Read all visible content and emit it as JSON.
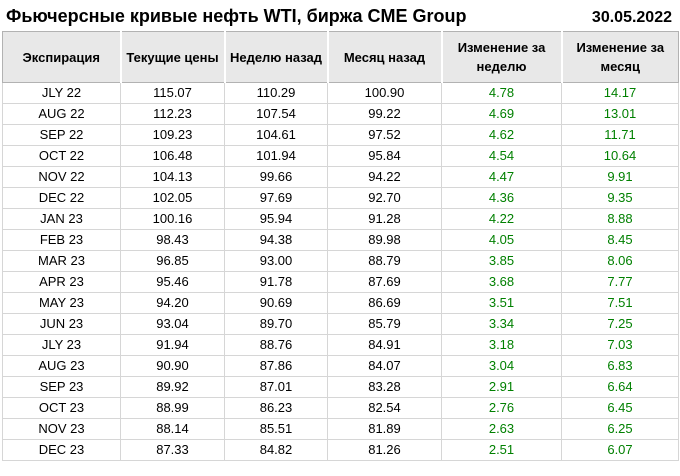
{
  "header": {
    "title": "Фьючерсные кривые нефть WTI, биржа CME Group",
    "date": "30.05.2022"
  },
  "colors": {
    "positive_change_text": "#008000",
    "header_background": "#e8e8e8",
    "header_border": "#b2b2b2",
    "grid_border": "#d6d6d6",
    "body_text": "#000000"
  },
  "table": {
    "columns": [
      "Экспирация",
      "Текущие цены",
      "Неделю назад",
      "Месяц назад",
      "Изменение за неделю",
      "Изменение за месяц"
    ],
    "rows": [
      [
        "JLY 22",
        "115.07",
        "110.29",
        "100.90",
        "4.78",
        "14.17"
      ],
      [
        "AUG 22",
        "112.23",
        "107.54",
        "99.22",
        "4.69",
        "13.01"
      ],
      [
        "SEP 22",
        "109.23",
        "104.61",
        "97.52",
        "4.62",
        "11.71"
      ],
      [
        "OCT 22",
        "106.48",
        "101.94",
        "95.84",
        "4.54",
        "10.64"
      ],
      [
        "NOV 22",
        "104.13",
        "99.66",
        "94.22",
        "4.47",
        "9.91"
      ],
      [
        "DEC 22",
        "102.05",
        "97.69",
        "92.70",
        "4.36",
        "9.35"
      ],
      [
        "JAN 23",
        "100.16",
        "95.94",
        "91.28",
        "4.22",
        "8.88"
      ],
      [
        "FEB 23",
        "98.43",
        "94.38",
        "89.98",
        "4.05",
        "8.45"
      ],
      [
        "MAR 23",
        "96.85",
        "93.00",
        "88.79",
        "3.85",
        "8.06"
      ],
      [
        "APR 23",
        "95.46",
        "91.78",
        "87.69",
        "3.68",
        "7.77"
      ],
      [
        "MAY 23",
        "94.20",
        "90.69",
        "86.69",
        "3.51",
        "7.51"
      ],
      [
        "JUN 23",
        "93.04",
        "89.70",
        "85.79",
        "3.34",
        "7.25"
      ],
      [
        "JLY 23",
        "91.94",
        "88.76",
        "84.91",
        "3.18",
        "7.03"
      ],
      [
        "AUG 23",
        "90.90",
        "87.86",
        "84.07",
        "3.04",
        "6.83"
      ],
      [
        "SEP 23",
        "89.92",
        "87.01",
        "83.28",
        "2.91",
        "6.64"
      ],
      [
        "OCT 23",
        "88.99",
        "86.23",
        "82.54",
        "2.76",
        "6.45"
      ],
      [
        "NOV 23",
        "88.14",
        "85.51",
        "81.89",
        "2.63",
        "6.25"
      ],
      [
        "DEC 23",
        "87.33",
        "84.82",
        "81.26",
        "2.51",
        "6.07"
      ]
    ]
  },
  "chart_data": {
    "type": "table",
    "title": "Фьючерсные кривые нефть WTI, биржа CME Group",
    "date": "30.05.2022",
    "columns": [
      "Экспирация",
      "Текущие цены",
      "Неделю назад",
      "Месяц назад",
      "Изменение за неделю",
      "Изменение за месяц"
    ],
    "categories": [
      "JLY 22",
      "AUG 22",
      "SEP 22",
      "OCT 22",
      "NOV 22",
      "DEC 22",
      "JAN 23",
      "FEB 23",
      "MAR 23",
      "APR 23",
      "MAY 23",
      "JUN 23",
      "JLY 23",
      "AUG 23",
      "SEP 23",
      "OCT 23",
      "NOV 23",
      "DEC 23"
    ],
    "series": [
      {
        "name": "Текущие цены",
        "values": [
          115.07,
          112.23,
          109.23,
          106.48,
          104.13,
          102.05,
          100.16,
          98.43,
          96.85,
          95.46,
          94.2,
          93.04,
          91.94,
          90.9,
          89.92,
          88.99,
          88.14,
          87.33
        ]
      },
      {
        "name": "Неделю назад",
        "values": [
          110.29,
          107.54,
          104.61,
          101.94,
          99.66,
          97.69,
          95.94,
          94.38,
          93.0,
          91.78,
          90.69,
          89.7,
          88.76,
          87.86,
          87.01,
          86.23,
          85.51,
          84.82
        ]
      },
      {
        "name": "Месяц назад",
        "values": [
          100.9,
          99.22,
          97.52,
          95.84,
          94.22,
          92.7,
          91.28,
          89.98,
          88.79,
          87.69,
          86.69,
          85.79,
          84.91,
          84.07,
          83.28,
          82.54,
          81.89,
          81.26
        ]
      },
      {
        "name": "Изменение за неделю",
        "values": [
          4.78,
          4.69,
          4.62,
          4.54,
          4.47,
          4.36,
          4.22,
          4.05,
          3.85,
          3.68,
          3.51,
          3.34,
          3.18,
          3.04,
          2.91,
          2.76,
          2.63,
          2.51
        ]
      },
      {
        "name": "Изменение за месяц",
        "values": [
          14.17,
          13.01,
          11.71,
          10.64,
          9.91,
          9.35,
          8.88,
          8.45,
          8.06,
          7.77,
          7.51,
          7.25,
          7.03,
          6.83,
          6.64,
          6.45,
          6.25,
          6.07
        ]
      }
    ]
  }
}
